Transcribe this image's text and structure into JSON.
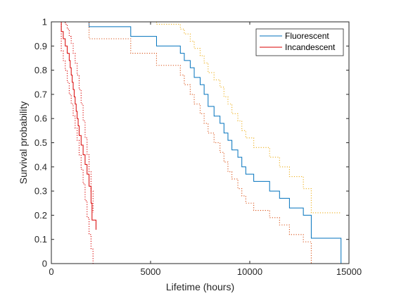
{
  "chart_data": {
    "type": "line",
    "subtype": "step",
    "title": "",
    "xlabel": "Lifetime (hours)",
    "ylabel": "Survival probability",
    "xlim": [
      0,
      15000
    ],
    "ylim": [
      0,
      1
    ],
    "xticks": [
      0,
      5000,
      10000,
      15000
    ],
    "xtick_labels": [
      "0",
      "5000",
      "10000",
      "15000"
    ],
    "yticks": [
      0,
      0.1,
      0.2,
      0.3,
      0.4,
      0.5,
      0.6,
      0.7,
      0.8,
      0.9,
      1
    ],
    "ytick_labels": [
      "0",
      "0.1",
      "0.2",
      "0.3",
      "0.4",
      "0.5",
      "0.6",
      "0.7",
      "0.8",
      "0.9",
      "1"
    ],
    "grid": false,
    "legend_position": "top-right",
    "series": [
      {
        "name": "Fluorescent",
        "color": "#0072BD",
        "style": "solid",
        "x": [
          0,
          1900,
          4000,
          4300,
          5300,
          6500,
          6700,
          7000,
          7200,
          7500,
          7700,
          7900,
          8200,
          8500,
          8700,
          8900,
          9100,
          9400,
          9600,
          9800,
          10200,
          11000,
          11500,
          12000,
          12700,
          13100,
          14600
        ],
        "y": [
          1,
          0.98,
          0.94,
          0.94,
          0.9,
          0.87,
          0.84,
          0.81,
          0.77,
          0.74,
          0.7,
          0.65,
          0.61,
          0.58,
          0.54,
          0.51,
          0.47,
          0.44,
          0.4,
          0.37,
          0.34,
          0.3,
          0.27,
          0.23,
          0.2,
          0.105,
          0
        ]
      },
      {
        "name": "Incandescent",
        "color": "#D90000",
        "style": "solid",
        "x": [
          0,
          500,
          600,
          700,
          800,
          900,
          950,
          1000,
          1050,
          1100,
          1150,
          1200,
          1250,
          1300,
          1350,
          1400,
          1500,
          1600,
          1700,
          1800,
          1900,
          2000,
          2050,
          2250
        ],
        "y": [
          1,
          0.96,
          0.93,
          0.9,
          0.87,
          0.84,
          0.81,
          0.78,
          0.75,
          0.72,
          0.69,
          0.66,
          0.63,
          0.6,
          0.57,
          0.53,
          0.49,
          0.45,
          0.41,
          0.37,
          0.32,
          0.25,
          0.18,
          0.14
        ]
      },
      {
        "name": "",
        "color": "#EDB120",
        "style": "dotted",
        "x": [
          0,
          1900,
          4000,
          5300,
          6500,
          6700,
          7000,
          7200,
          7500,
          7700,
          7900,
          8200,
          8500,
          8700,
          8900,
          9100,
          9400,
          9600,
          9800,
          10200,
          11000,
          11500,
          12000,
          12700,
          13100,
          14600
        ],
        "y": [
          1,
          1,
          1,
          0.99,
          0.97,
          0.95,
          0.92,
          0.89,
          0.86,
          0.83,
          0.79,
          0.76,
          0.73,
          0.69,
          0.66,
          0.62,
          0.59,
          0.55,
          0.52,
          0.48,
          0.44,
          0.4,
          0.36,
          0.31,
          0.21,
          0.21
        ]
      },
      {
        "name": "",
        "color": "#D95319",
        "style": "dotted",
        "x": [
          0,
          1900,
          4000,
          4300,
          5300,
          6500,
          6700,
          7000,
          7200,
          7500,
          7700,
          7900,
          8200,
          8500,
          8700,
          8900,
          9100,
          9400,
          9600,
          9800,
          10200,
          11000,
          11500,
          12000,
          12700,
          13100
        ],
        "y": [
          1,
          0.93,
          0.87,
          0.87,
          0.82,
          0.78,
          0.74,
          0.7,
          0.66,
          0.62,
          0.58,
          0.54,
          0.5,
          0.46,
          0.42,
          0.38,
          0.35,
          0.31,
          0.28,
          0.25,
          0.22,
          0.19,
          0.16,
          0.12,
          0.09,
          0
        ]
      },
      {
        "name": "",
        "color": "#D90000",
        "style": "dotted",
        "x": [
          0,
          500,
          600,
          700,
          800,
          900,
          1000,
          1100,
          1200,
          1300,
          1400,
          1500,
          1600,
          1700,
          1800,
          1900,
          2000,
          2100
        ],
        "y": [
          1,
          1,
          1,
          0.99,
          0.97,
          0.94,
          0.91,
          0.87,
          0.83,
          0.78,
          0.72,
          0.66,
          0.59,
          0.52,
          0.45,
          0.38,
          0.3,
          0.21
        ]
      },
      {
        "name": "",
        "color": "#D90000",
        "style": "dotted",
        "x": [
          0,
          500,
          600,
          700,
          800,
          900,
          1000,
          1100,
          1200,
          1300,
          1400,
          1500,
          1600,
          1700,
          1800,
          1900,
          2000,
          2100
        ],
        "y": [
          1,
          0.88,
          0.84,
          0.8,
          0.75,
          0.7,
          0.66,
          0.61,
          0.56,
          0.51,
          0.45,
          0.39,
          0.33,
          0.26,
          0.19,
          0.12,
          0.06,
          0
        ]
      }
    ]
  }
}
